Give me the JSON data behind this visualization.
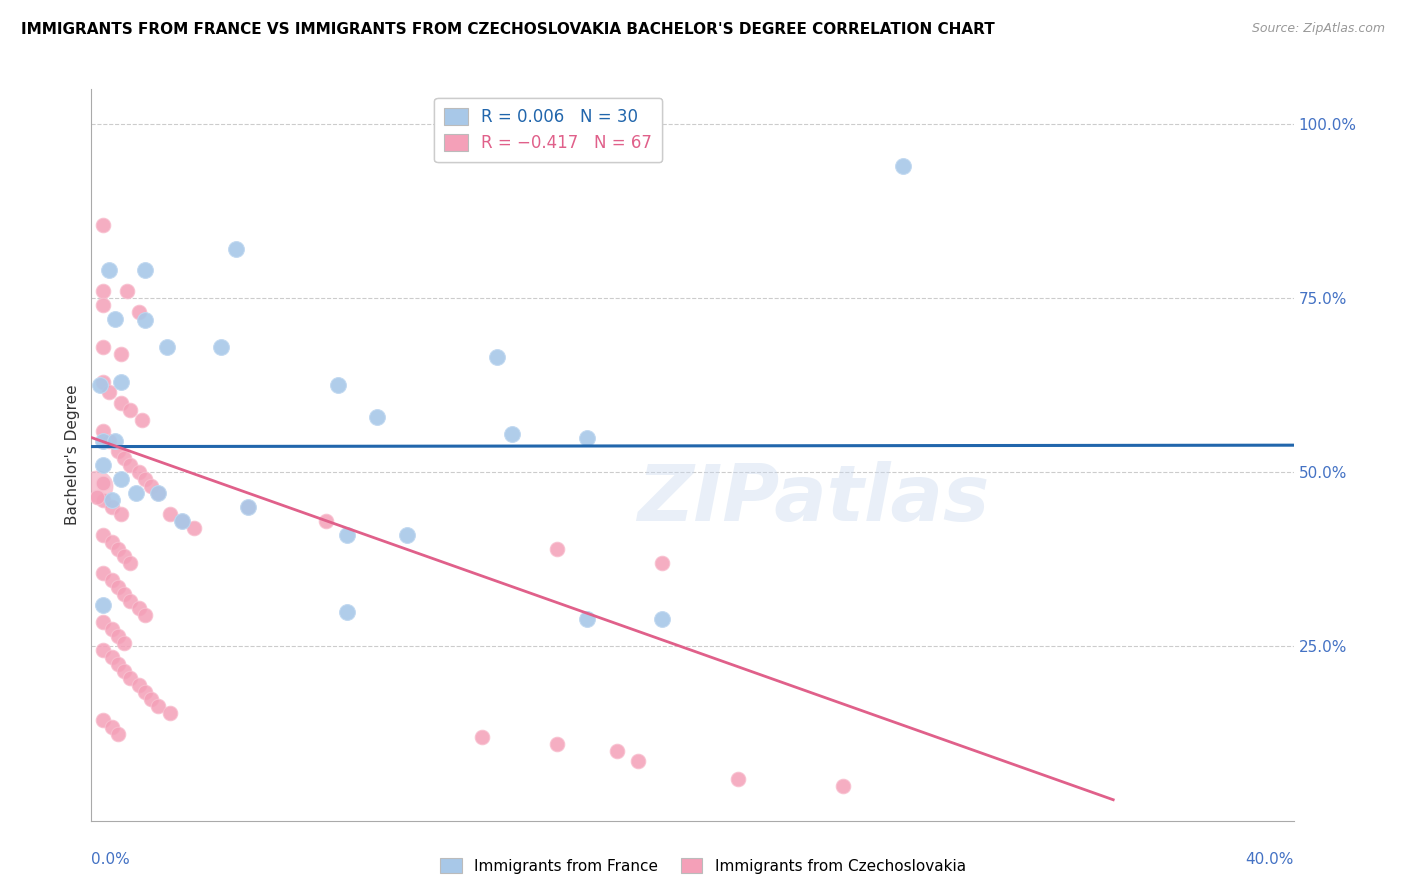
{
  "title": "IMMIGRANTS FROM FRANCE VS IMMIGRANTS FROM CZECHOSLOVAKIA BACHELOR'S DEGREE CORRELATION CHART",
  "source": "Source: ZipAtlas.com",
  "ylabel": "Bachelor's Degree",
  "watermark": "ZIPatlas",
  "blue_color": "#a8c8e8",
  "pink_color": "#f4a0b8",
  "blue_line_color": "#2166ac",
  "pink_line_color": "#e0608a",
  "france_dots": [
    [
      0.004,
      0.545
    ],
    [
      0.008,
      0.545
    ],
    [
      0.003,
      0.625
    ],
    [
      0.01,
      0.63
    ],
    [
      0.008,
      0.72
    ],
    [
      0.018,
      0.718
    ],
    [
      0.025,
      0.68
    ],
    [
      0.043,
      0.68
    ],
    [
      0.006,
      0.79
    ],
    [
      0.018,
      0.79
    ],
    [
      0.048,
      0.82
    ],
    [
      0.082,
      0.625
    ],
    [
      0.095,
      0.58
    ],
    [
      0.135,
      0.665
    ],
    [
      0.165,
      0.55
    ],
    [
      0.004,
      0.51
    ],
    [
      0.007,
      0.46
    ],
    [
      0.01,
      0.49
    ],
    [
      0.015,
      0.47
    ],
    [
      0.022,
      0.47
    ],
    [
      0.03,
      0.43
    ],
    [
      0.052,
      0.45
    ],
    [
      0.085,
      0.41
    ],
    [
      0.105,
      0.41
    ],
    [
      0.004,
      0.31
    ],
    [
      0.085,
      0.3
    ],
    [
      0.165,
      0.29
    ],
    [
      0.19,
      0.29
    ],
    [
      0.27,
      0.94
    ],
    [
      0.14,
      0.555
    ]
  ],
  "czech_dots": [
    [
      0.004,
      0.855
    ],
    [
      0.004,
      0.76
    ],
    [
      0.012,
      0.76
    ],
    [
      0.004,
      0.74
    ],
    [
      0.016,
      0.73
    ],
    [
      0.004,
      0.68
    ],
    [
      0.01,
      0.67
    ],
    [
      0.004,
      0.63
    ],
    [
      0.006,
      0.615
    ],
    [
      0.01,
      0.6
    ],
    [
      0.013,
      0.59
    ],
    [
      0.017,
      0.575
    ],
    [
      0.004,
      0.56
    ],
    [
      0.006,
      0.545
    ],
    [
      0.009,
      0.53
    ],
    [
      0.011,
      0.52
    ],
    [
      0.013,
      0.51
    ],
    [
      0.016,
      0.5
    ],
    [
      0.018,
      0.49
    ],
    [
      0.02,
      0.48
    ],
    [
      0.022,
      0.47
    ],
    [
      0.004,
      0.46
    ],
    [
      0.007,
      0.45
    ],
    [
      0.01,
      0.44
    ],
    [
      0.026,
      0.44
    ],
    [
      0.03,
      0.43
    ],
    [
      0.034,
      0.42
    ],
    [
      0.004,
      0.41
    ],
    [
      0.007,
      0.4
    ],
    [
      0.009,
      0.39
    ],
    [
      0.011,
      0.38
    ],
    [
      0.013,
      0.37
    ],
    [
      0.052,
      0.45
    ],
    [
      0.078,
      0.43
    ],
    [
      0.004,
      0.355
    ],
    [
      0.007,
      0.345
    ],
    [
      0.009,
      0.335
    ],
    [
      0.011,
      0.325
    ],
    [
      0.013,
      0.315
    ],
    [
      0.016,
      0.305
    ],
    [
      0.018,
      0.295
    ],
    [
      0.004,
      0.285
    ],
    [
      0.007,
      0.275
    ],
    [
      0.009,
      0.265
    ],
    [
      0.011,
      0.255
    ],
    [
      0.004,
      0.245
    ],
    [
      0.007,
      0.235
    ],
    [
      0.009,
      0.225
    ],
    [
      0.011,
      0.215
    ],
    [
      0.013,
      0.205
    ],
    [
      0.016,
      0.195
    ],
    [
      0.018,
      0.185
    ],
    [
      0.02,
      0.175
    ],
    [
      0.022,
      0.165
    ],
    [
      0.026,
      0.155
    ],
    [
      0.004,
      0.145
    ],
    [
      0.007,
      0.135
    ],
    [
      0.009,
      0.125
    ],
    [
      0.13,
      0.12
    ],
    [
      0.155,
      0.11
    ],
    [
      0.175,
      0.1
    ],
    [
      0.182,
      0.085
    ],
    [
      0.004,
      0.485
    ],
    [
      0.002,
      0.465
    ],
    [
      0.155,
      0.39
    ],
    [
      0.19,
      0.37
    ],
    [
      0.215,
      0.06
    ],
    [
      0.25,
      0.05
    ]
  ],
  "czech_big_dot": [
    0.002,
    0.48
  ],
  "xlim": [
    0.0,
    0.4
  ],
  "ylim": [
    0.0,
    1.05
  ],
  "france_line_x": [
    0.0,
    0.4
  ],
  "france_line_y": [
    0.537,
    0.539
  ],
  "czech_line_x": [
    0.0,
    0.34
  ],
  "czech_line_y": [
    0.55,
    0.03
  ]
}
